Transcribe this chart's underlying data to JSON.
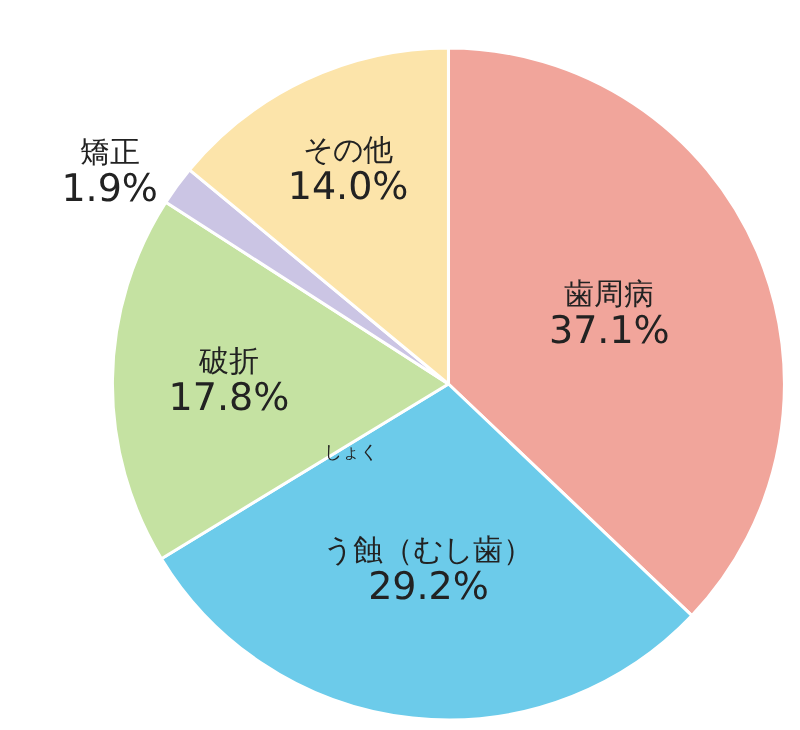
{
  "chart_data": {
    "type": "pie",
    "categories": [
      "歯周病",
      "う蝕（むし歯）",
      "破折",
      "矯正",
      "その他"
    ],
    "values": [
      37.1,
      29.2,
      17.8,
      1.9,
      14.0
    ],
    "value_labels": [
      "37.1%",
      "29.2%",
      "17.8%",
      "1.9%",
      "14.0%"
    ],
    "colors": [
      "#f1a59b",
      "#6ccbea",
      "#c5e2a2",
      "#cbc5e4",
      "#fce4aa"
    ],
    "annotations": [
      "しょく"
    ],
    "legend": false
  }
}
